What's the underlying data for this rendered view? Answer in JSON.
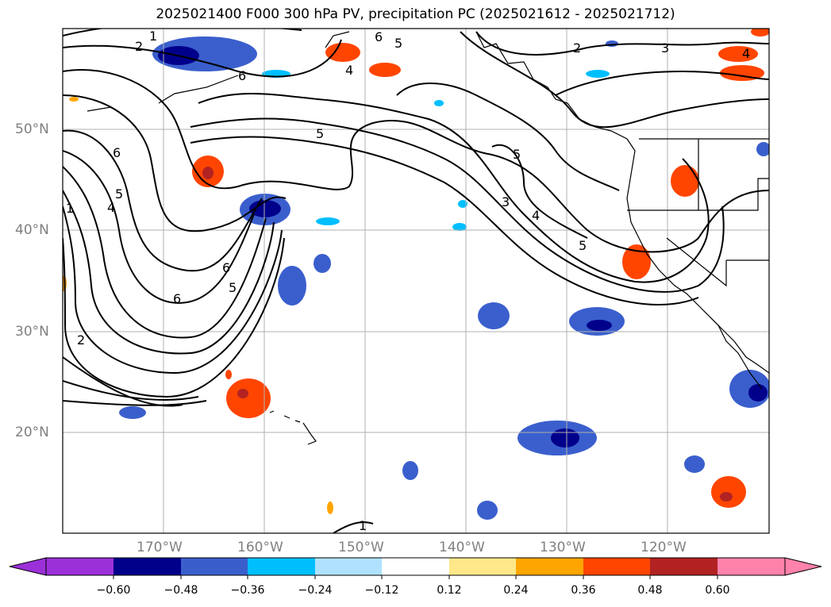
{
  "title": "2025021400 F000 300 hPa PV, precipitation PC (2025021612 - 2025021712)",
  "lat_labels": [
    "50°N",
    "40°N",
    "30°N",
    "20°N"
  ],
  "lon_labels": [
    "170°W",
    "160°W",
    "150°W",
    "140°W",
    "130°W",
    "120°W"
  ],
  "contour_labels": [
    "1",
    "2",
    "6",
    "5",
    "4",
    "1",
    "6",
    "5",
    "6",
    "5",
    "6",
    "2",
    "5",
    "4",
    "2",
    "3",
    "4",
    "5",
    "3",
    "4",
    "5",
    "6",
    "1"
  ],
  "colorbar": {
    "ticks": [
      "−0.60",
      "−0.48",
      "−0.36",
      "−0.24",
      "−0.12",
      "0.12",
      "0.24",
      "0.36",
      "0.48",
      "0.60"
    ],
    "colors": [
      "#9b30d9",
      "#00008b",
      "#3a5fcd",
      "#00bfff",
      "#b0e2ff",
      "#ffffff",
      "#ffe88a",
      "#ffa500",
      "#ff4500",
      "#b22222",
      "#ff82ab"
    ]
  }
}
